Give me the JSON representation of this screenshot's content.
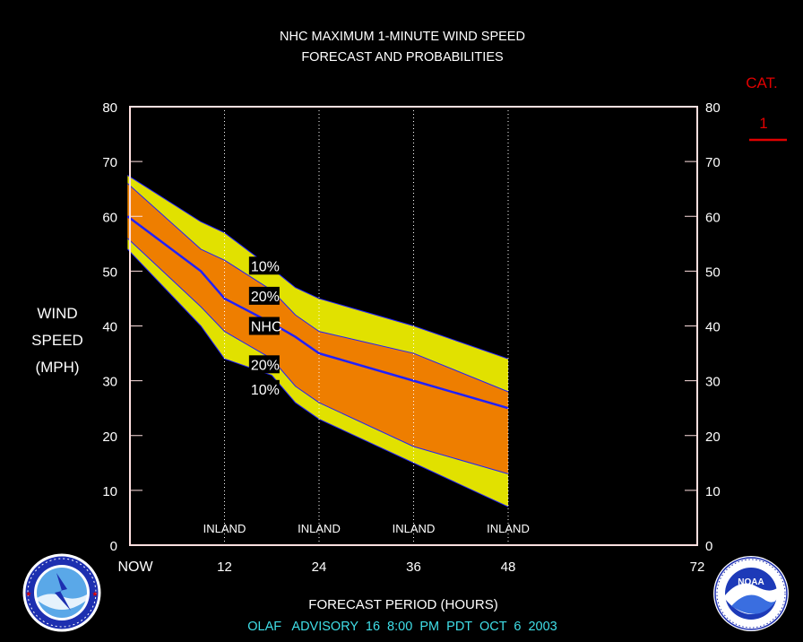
{
  "chart_data": {
    "type": "area",
    "title": "NHC MAXIMUM 1-MINUTE WIND SPEED",
    "subtitle": "FORECAST AND PROBABILITIES",
    "ylabel": [
      "WIND",
      "SPEED",
      "(MPH)"
    ],
    "xlabel": "FORECAST PERIOD (HOURS)",
    "footer": "OLAF   ADVISORY  16  8:00  PM  PDT  OCT  6  2003",
    "xlim": [
      0,
      72
    ],
    "ylim": [
      0,
      80
    ],
    "y_ticks": [
      0,
      10,
      20,
      30,
      40,
      50,
      60,
      70,
      80
    ],
    "x_ticks": [
      {
        "x": 0,
        "label": "NOW"
      },
      {
        "x": 12,
        "label": "12"
      },
      {
        "x": 24,
        "label": "24"
      },
      {
        "x": 36,
        "label": "36"
      },
      {
        "x": 48,
        "label": "48"
      },
      {
        "x": 72,
        "label": "72"
      }
    ],
    "x": [
      -0.3,
      9,
      12,
      18,
      21,
      24,
      36,
      48
    ],
    "series": [
      {
        "name": "10%",
        "role": "upper",
        "values": [
          67.5,
          59,
          57,
          50.5,
          47,
          45,
          40,
          34
        ]
      },
      {
        "name": "20%",
        "role": "upper",
        "values": [
          66,
          54,
          52,
          46.5,
          42,
          39,
          35,
          28
        ]
      },
      {
        "name": "NHC",
        "role": "forecast",
        "values": [
          60,
          50,
          45,
          40.5,
          38,
          35,
          30,
          25
        ]
      },
      {
        "name": "20%",
        "role": "lower",
        "values": [
          56,
          43.5,
          39,
          34,
          29,
          26,
          18,
          13
        ]
      },
      {
        "name": "10%",
        "role": "lower",
        "values": [
          54,
          40,
          34,
          31,
          26,
          23,
          15,
          7
        ]
      }
    ],
    "inland_markers": [
      {
        "x": 12,
        "label": "INLAND"
      },
      {
        "x": 24,
        "label": "INLAND"
      },
      {
        "x": 36,
        "label": "INLAND"
      },
      {
        "x": 48,
        "label": "INLAND"
      }
    ],
    "band_labels": {
      "x": 17.5,
      "items": [
        {
          "text": "10%",
          "y": 51
        },
        {
          "text": "20%",
          "y": 45.5
        },
        {
          "text": "NHC",
          "y": 40
        },
        {
          "text": "20%",
          "y": 33
        },
        {
          "text": "10%",
          "y": 28.5
        }
      ]
    },
    "category": {
      "title": "CAT.",
      "value": "1"
    },
    "colors": {
      "outer_band": "#e1e100",
      "inner_band": "#ee7e00",
      "forecast_line": "#2020ff",
      "axis": "#ffe0e0",
      "text": "#ffffff",
      "category": "#e00000",
      "footer": "#40dfe8"
    }
  },
  "logos": {
    "nws": {
      "name": "NATIONAL WEATHER SERVICE"
    },
    "noaa": {
      "name": "NOAA",
      "ring_text": "NATIONAL OCEANIC AND ATMOSPHERIC ADMINISTRATION · U.S. DEPARTMENT OF COMMERCE"
    }
  }
}
